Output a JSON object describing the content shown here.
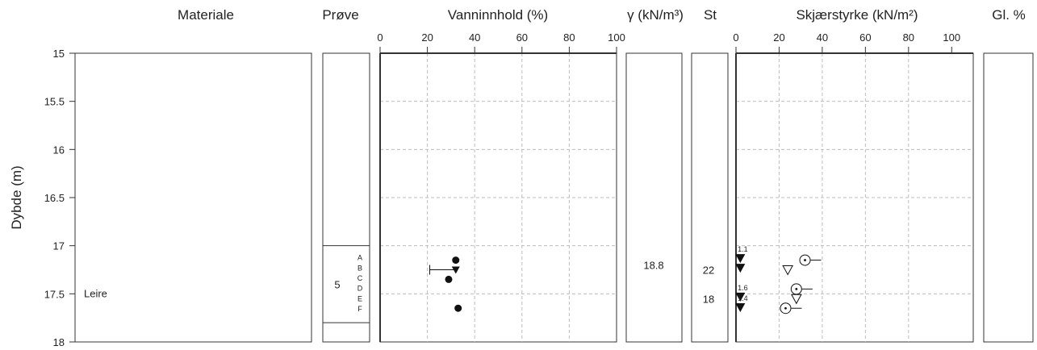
{
  "chart_data": {
    "type": "scatter",
    "ylabel": "Dybde (m)",
    "depth_axis": {
      "min": 15,
      "max": 18,
      "ticks": [
        "15",
        "15.5",
        "16",
        "16.5",
        "17",
        "17.5",
        "18"
      ],
      "inverted": true
    },
    "columns": {
      "materiale": "Materiale",
      "prove": "Prøve",
      "vanninnhold": "Vanninnhold (%)",
      "gamma": "γ (kN/m³)",
      "st": "St",
      "skjaer": "Skjærstyrke (kN/m²)",
      "gl": "Gl. %"
    },
    "percent_axis_ticks": [
      "0",
      "20",
      "40",
      "60",
      "80",
      "100"
    ],
    "grid": true,
    "materiale": {
      "label": "Leire",
      "depth": 17.5
    },
    "prove": {
      "number": "5",
      "top": 17.0,
      "bottom": 17.8,
      "letters": [
        "A",
        "B",
        "C",
        "D",
        "E",
        "F"
      ]
    },
    "vanninnhold": {
      "water_content": [
        {
          "depth": 17.15,
          "value": 32
        },
        {
          "depth": 17.35,
          "value": 29
        },
        {
          "depth": 17.65,
          "value": 33
        }
      ],
      "atterberg": {
        "depth": 17.25,
        "plastic": 21,
        "liquid": 32
      }
    },
    "gamma": [
      {
        "depth": 17.2,
        "value": "18.8"
      }
    ],
    "st": [
      {
        "depth": 17.25,
        "value": "22"
      },
      {
        "depth": 17.55,
        "value": "18"
      }
    ],
    "skjaer": {
      "cone_undisturbed": [
        {
          "depth": 17.25,
          "value": 24
        },
        {
          "depth": 17.55,
          "value": 28
        }
      ],
      "cone_remoulded": [
        {
          "depth": 17.13,
          "value": 2,
          "label": "1.1"
        },
        {
          "depth": 17.23,
          "value": 2
        },
        {
          "depth": 17.53,
          "value": 2,
          "label": "1.6"
        },
        {
          "depth": 17.64,
          "value": 2,
          "label": "1.4"
        }
      ],
      "unconfined": [
        {
          "depth": 17.15,
          "value": 32
        },
        {
          "depth": 17.45,
          "value": 28
        },
        {
          "depth": 17.65,
          "value": 23
        }
      ]
    }
  }
}
